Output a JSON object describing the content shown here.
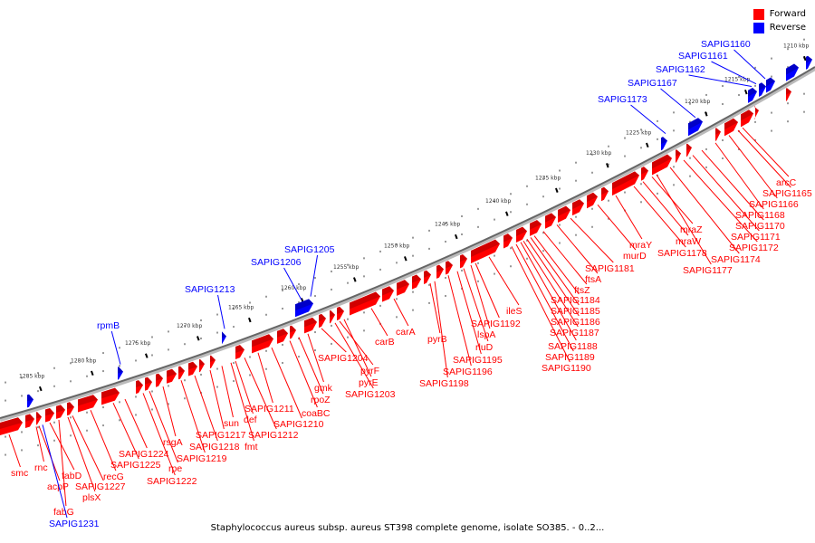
{
  "legend": {
    "items": [
      {
        "label": "Forward",
        "color": "#ff0000"
      },
      {
        "label": "Reverse",
        "color": "#0000ff"
      }
    ]
  },
  "caption": "Staphylococcus aureus subsp. aureus ST398 complete genome, isolate SO385. - 0..2...",
  "ticks": [
    "1210 kbp",
    "1215 kbp",
    "1220 kbp",
    "1225 kbp",
    "1230 kbp",
    "1235 kbp",
    "1240 kbp",
    "1245 kbp",
    "1250 kbp",
    "1255 kbp",
    "1260 kbp",
    "1265 kbp",
    "1270 kbp",
    "1275 kbp",
    "1280 kbp",
    "1285 kbp"
  ],
  "forward_genes": [
    "smc",
    "rnc",
    "acpP",
    "fabD",
    "fabG",
    "plsX",
    "SAPIG1227",
    "recG",
    "SAPIG1225",
    "SAPIG1224",
    "rpe",
    "SAPIG1222",
    "rsgA",
    "SAPIG1219",
    "SAPIG1218",
    "SAPIG1217",
    "fmt",
    "sun",
    "def",
    "SAPIG1212",
    "SAPIG1211",
    "SAPIG1210",
    "coaBC",
    "rpoZ",
    "gmk",
    "SAPIG1204",
    "pyrF",
    "pyrE",
    "SAPIG1203",
    "carB",
    "carA",
    "pyrB",
    "SAPIG1198",
    "SAPIG1196",
    "SAPIG1195",
    "rluD",
    "lspA",
    "SAPIG1192",
    "ileS",
    "SAPIG1190",
    "SAPIG1189",
    "SAPIG1188",
    "SAPIG1187",
    "SAPIG1186",
    "SAPIG1185",
    "SAPIG1184",
    "ftsZ",
    "ftsA",
    "SAPIG1181",
    "murD",
    "mraY",
    "SAPIG1178",
    "mraW",
    "mraZ",
    "SAPIG1177",
    "SAPIG1174",
    "SAPIG1172",
    "SAPIG1171",
    "SAPIG1170",
    "SAPIG1168",
    "SAPIG1166",
    "SAPIG1165",
    "arcC"
  ],
  "reverse_genes": [
    "SAPIG1231",
    "rpmB",
    "SAPIG1213",
    "SAPIG1206",
    "SAPIG1205",
    "SAPIG1173",
    "SAPIG1167",
    "SAPIG1162",
    "SAPIG1161",
    "SAPIG1160"
  ]
}
